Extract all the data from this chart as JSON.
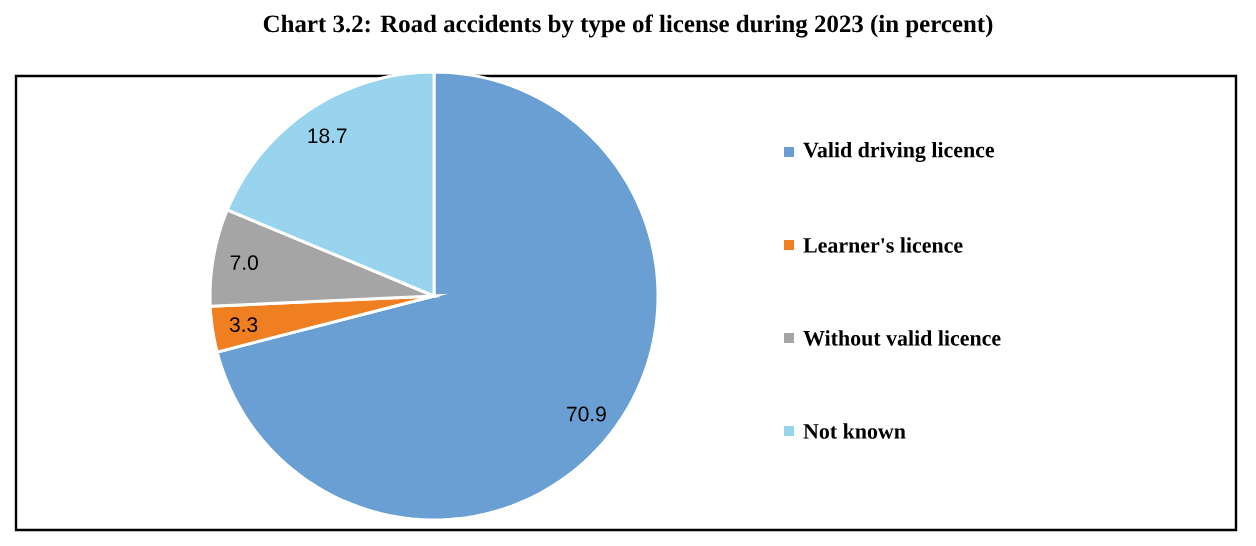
{
  "chart_data": {
    "type": "pie",
    "title": "Chart 3.2: Road accidents by type of license during 2023 (in percent)",
    "categories": [
      "Valid driving licence",
      "Learner's licence",
      "Without valid licence",
      "Not known"
    ],
    "values": [
      70.9,
      3.3,
      7.0,
      18.7
    ],
    "colors": [
      "#6a9fd3",
      "#f07f22",
      "#a5a5a5",
      "#99d4ee"
    ],
    "value_labels": [
      "70.9",
      "3.3",
      "7.0",
      "18.7"
    ],
    "legend": "right"
  }
}
